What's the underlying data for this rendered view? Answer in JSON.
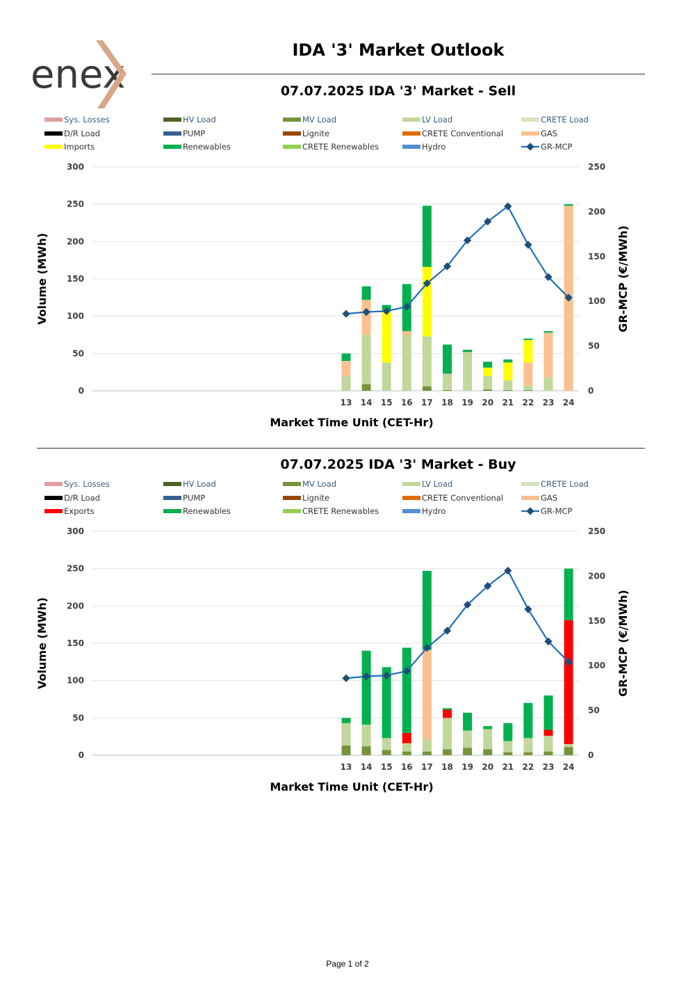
{
  "header": {
    "logo_text": "enex",
    "title": "IDA '3' Market Outlook"
  },
  "footer": {
    "page_label": "Page 1 of 2"
  },
  "colors": {
    "sys_losses": "#E0A0A0",
    "hv_load": "#4F6228",
    "mv_load": "#77933C",
    "lv_load": "#C3D69B",
    "crete_load": "#D7E4BD",
    "dr_load": "#000000",
    "pump": "#366092",
    "lignite": "#974806",
    "crete_conventional": "#E36C09",
    "gas": "#FAC090",
    "imports": "#FFFF00",
    "exports": "#FF0000",
    "renewables": "#00B050",
    "crete_renewables": "#92D050",
    "hydro": "#558ED5",
    "mcp_line": "#1F6FB6",
    "mcp_marker": "#1F4E79"
  },
  "chart_data": [
    {
      "type": "bar",
      "stacked": true,
      "title": "07.07.2025  IDA '3' Market - Sell",
      "xlabel": "Market Time Unit (CET-Hr)",
      "ylabel": "Volume (MWh)",
      "y2label": "GR-MCP (€/MWh)",
      "ylim": [
        0,
        300
      ],
      "yticks": [
        0,
        50,
        100,
        150,
        200,
        250,
        300
      ],
      "y2lim": [
        0,
        250
      ],
      "y2ticks": [
        0,
        50,
        100,
        150,
        200,
        250
      ],
      "categories": [
        "13",
        "14",
        "15",
        "16",
        "17",
        "18",
        "19",
        "20",
        "21",
        "22",
        "23",
        "24"
      ],
      "legend": [
        {
          "label": "Sys. Losses",
          "color_key": "sys_losses"
        },
        {
          "label": "HV Load",
          "color_key": "hv_load"
        },
        {
          "label": "MV Load",
          "color_key": "mv_load"
        },
        {
          "label": "LV Load",
          "color_key": "lv_load"
        },
        {
          "label": "CRETE Load",
          "color_key": "crete_load"
        },
        {
          "label": "D/R Load",
          "color_key": "dr_load"
        },
        {
          "label": "PUMP",
          "color_key": "pump"
        },
        {
          "label": "Lignite",
          "color_key": "lignite"
        },
        {
          "label": "CRETE Conventional",
          "color_key": "crete_conventional"
        },
        {
          "label": "GAS",
          "color_key": "gas"
        },
        {
          "label": "Imports",
          "color_key": "imports"
        },
        {
          "label": "Renewables",
          "color_key": "renewables"
        },
        {
          "label": "CRETE Renewables",
          "color_key": "crete_renewables"
        },
        {
          "label": "Hydro",
          "color_key": "hydro"
        },
        {
          "label": "GR-MCP",
          "color_key": "mcp_line",
          "is_line": true
        }
      ],
      "series": [
        {
          "name": "MV Load",
          "color_key": "mv_load",
          "values": [
            0,
            9,
            0,
            0,
            6,
            1,
            0,
            2,
            1,
            1,
            0,
            0
          ]
        },
        {
          "name": "LV Load",
          "color_key": "lv_load",
          "values": [
            20,
            66,
            38,
            75,
            67,
            22,
            52,
            18,
            13,
            6,
            18,
            0
          ]
        },
        {
          "name": "GAS",
          "color_key": "gas",
          "values": [
            20,
            47,
            0,
            5,
            0,
            0,
            0,
            0,
            0,
            31,
            60,
            248
          ]
        },
        {
          "name": "Imports",
          "color_key": "imports",
          "values": [
            0,
            0,
            70,
            0,
            93,
            0,
            0,
            11,
            24,
            30,
            0,
            0
          ]
        },
        {
          "name": "Renewables",
          "color_key": "renewables",
          "values": [
            10,
            18,
            7,
            63,
            82,
            39,
            3,
            8,
            4,
            2,
            2,
            2
          ]
        }
      ],
      "line": {
        "name": "GR-MCP",
        "axis": "right",
        "values": [
          86,
          88,
          89,
          94,
          120,
          139,
          168,
          189,
          206,
          163,
          127,
          104
        ]
      }
    },
    {
      "type": "bar",
      "stacked": true,
      "title": "07.07.2025  IDA '3' Market - Buy",
      "xlabel": "Market Time Unit (CET-Hr)",
      "ylabel": "Volume (MWh)",
      "y2label": "GR-MCP (€/MWh)",
      "ylim": [
        0,
        300
      ],
      "yticks": [
        0,
        50,
        100,
        150,
        200,
        250,
        300
      ],
      "y2lim": [
        0,
        250
      ],
      "y2ticks": [
        0,
        50,
        100,
        150,
        200,
        250
      ],
      "categories": [
        "13",
        "14",
        "15",
        "16",
        "17",
        "18",
        "19",
        "20",
        "21",
        "22",
        "23",
        "24"
      ],
      "legend": [
        {
          "label": "Sys. Losses",
          "color_key": "sys_losses"
        },
        {
          "label": "HV Load",
          "color_key": "hv_load"
        },
        {
          "label": "MV Load",
          "color_key": "mv_load"
        },
        {
          "label": "LV Load",
          "color_key": "lv_load"
        },
        {
          "label": "CRETE Load",
          "color_key": "crete_load"
        },
        {
          "label": "D/R Load",
          "color_key": "dr_load"
        },
        {
          "label": "PUMP",
          "color_key": "pump"
        },
        {
          "label": "Lignite",
          "color_key": "lignite"
        },
        {
          "label": "CRETE Conventional",
          "color_key": "crete_conventional"
        },
        {
          "label": "GAS",
          "color_key": "gas"
        },
        {
          "label": "Exports",
          "color_key": "exports"
        },
        {
          "label": "Renewables",
          "color_key": "renewables"
        },
        {
          "label": "CRETE Renewables",
          "color_key": "crete_renewables"
        },
        {
          "label": "Hydro",
          "color_key": "hydro"
        },
        {
          "label": "GR-MCP",
          "color_key": "mcp_line",
          "is_line": true
        }
      ],
      "series": [
        {
          "name": "MV Load",
          "color_key": "mv_load",
          "values": [
            13,
            12,
            7,
            5,
            5,
            8,
            10,
            8,
            4,
            4,
            5,
            11
          ]
        },
        {
          "name": "LV Load",
          "color_key": "lv_load",
          "values": [
            30,
            29,
            16,
            11,
            16,
            42,
            23,
            27,
            15,
            19,
            21,
            4
          ]
        },
        {
          "name": "GAS",
          "color_key": "gas",
          "values": [
            0,
            0,
            0,
            0,
            120,
            0,
            0,
            0,
            0,
            0,
            0,
            0
          ]
        },
        {
          "name": "Exports",
          "color_key": "exports",
          "values": [
            0,
            0,
            0,
            14,
            0,
            11,
            0,
            0,
            0,
            0,
            8,
            166
          ]
        },
        {
          "name": "Renewables",
          "color_key": "renewables",
          "values": [
            7,
            99,
            95,
            114,
            106,
            2,
            24,
            4,
            24,
            47,
            46,
            69
          ]
        }
      ],
      "line": {
        "name": "GR-MCP",
        "axis": "right",
        "values": [
          86,
          88,
          89,
          94,
          120,
          139,
          168,
          189,
          206,
          163,
          127,
          104
        ]
      }
    }
  ]
}
